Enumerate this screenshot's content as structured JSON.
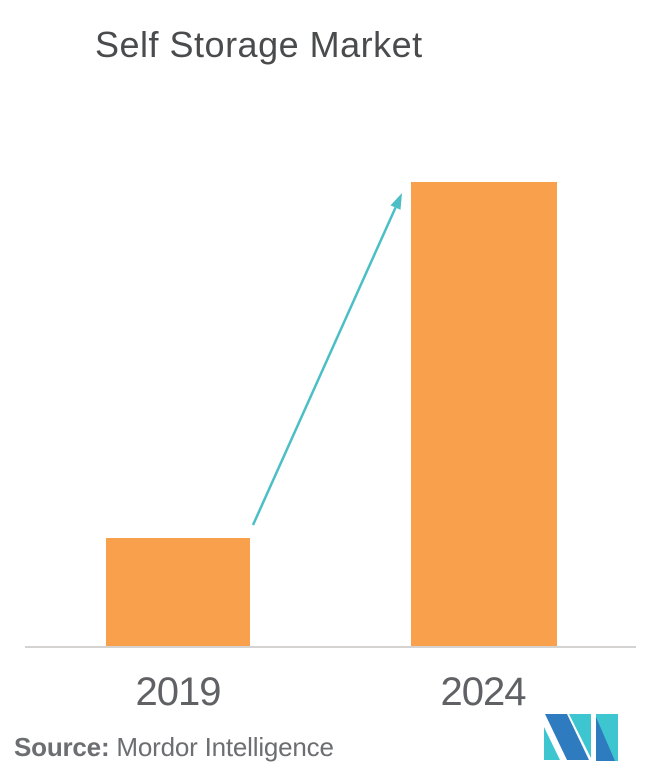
{
  "title": "Self Storage Market",
  "chart_data": {
    "type": "bar",
    "title": "Self Storage Market",
    "categories": [
      "2019",
      "2024"
    ],
    "values": [
      1,
      4.3
    ],
    "values_note": "No numeric axis is shown; values are relative bar heights (2024 is ~4.3x the 2019 bar).",
    "xlabel": "",
    "ylabel": "",
    "grid": false,
    "legend": false,
    "bar_color": "#F9A04C",
    "annotations": [
      {
        "type": "growth-arrow",
        "from": "top-right of 2019 bar",
        "to": "top-left of 2024 bar",
        "color": "#4BBEC6"
      }
    ]
  },
  "source": {
    "label": "Source:",
    "company": " Mordor Intelligence"
  },
  "logo": {
    "name": "mordor-intelligence-logo"
  },
  "colors": {
    "background": "#FFFFFF",
    "bar": "#F9A04C",
    "arrow": "#4BBEC6",
    "axis": "#D5D2D2",
    "title_text": "#4A4B4D",
    "year_text": "#606164",
    "source_text": "#6D6E71",
    "logo_teal": "#3EC6D0",
    "logo_blue": "#2E7BBF"
  }
}
